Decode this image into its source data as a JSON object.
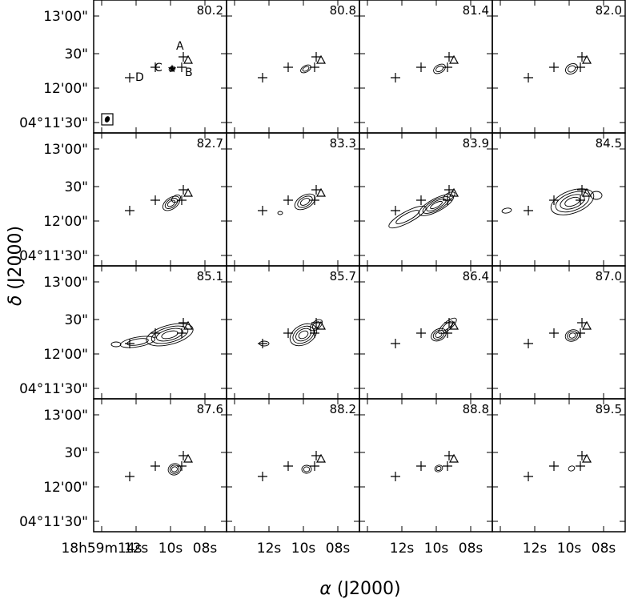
{
  "figure": {
    "xlabel_sym": "α",
    "xlabel_rest": " (J2000)",
    "ylabel_sym": "δ",
    "ylabel_rest": " (J2000)"
  },
  "chart_data": {
    "type": "channel-map grid",
    "rows": 4,
    "cols": 4,
    "velocities": [
      "80.2",
      "80.8",
      "81.4",
      "82.0",
      "82.7",
      "83.3",
      "83.9",
      "84.5",
      "85.1",
      "85.7",
      "86.4",
      "87.0",
      "87.6",
      "88.2",
      "88.8",
      "89.5"
    ],
    "ra_ticks_first_col": [
      "18h59m14s",
      "12s",
      "10s",
      "08s"
    ],
    "ra_ticks_other_cols": [
      "12s",
      "10s",
      "08s"
    ],
    "dec_ticks": [
      "13'00\"",
      "30\"",
      "12'00\"",
      "04°11'30\""
    ],
    "source_labels": [
      "A",
      "B",
      "C",
      "D"
    ],
    "markers": {
      "plus": [
        "A",
        "B",
        "C",
        "D"
      ],
      "triangle": 1,
      "star": 1
    }
  }
}
